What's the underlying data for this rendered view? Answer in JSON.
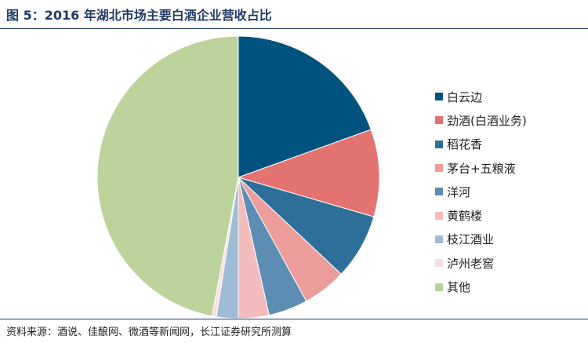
{
  "title": "图 5：2016 年湖北市场主要白酒企业营收占比",
  "source": "资料来源：酒说、佳酿网、微酒等新闻网，长江证券研究所测算",
  "chart_data": {
    "type": "pie",
    "start": "12 o'clock, clockwise",
    "series": [
      {
        "name": "白云边",
        "value": 19.5,
        "color": "#00527f"
      },
      {
        "name": "劲酒(白酒业务)",
        "value": 10,
        "color": "#e37371"
      },
      {
        "name": "稻花香",
        "value": 7.5,
        "color": "#2e6f99"
      },
      {
        "name": "茅台+五粮液",
        "value": 5,
        "color": "#ec9c9a"
      },
      {
        "name": "洋河",
        "value": 4.5,
        "color": "#5e8db4"
      },
      {
        "name": "黄鹤楼",
        "value": 3.5,
        "color": "#f3bcbc"
      },
      {
        "name": "枝江酒业",
        "value": 2.5,
        "color": "#9fbbd6"
      },
      {
        "name": "泸州老窖",
        "value": 0.5,
        "color": "#f9dedd"
      },
      {
        "name": "其他",
        "value": 47,
        "color": "#bcd39b"
      }
    ]
  }
}
